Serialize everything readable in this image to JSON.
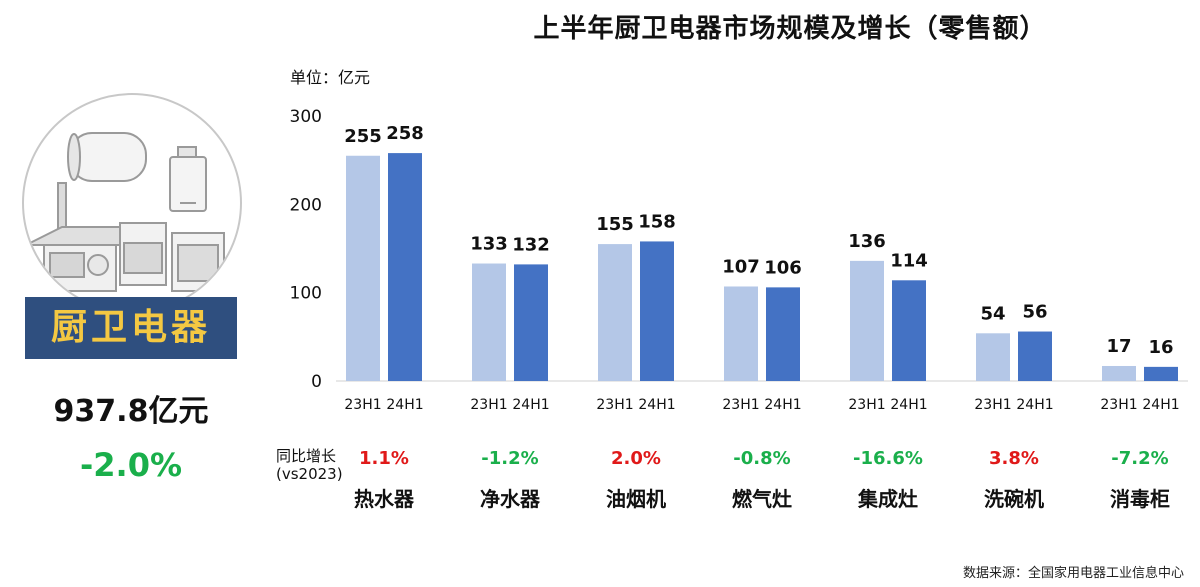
{
  "title": "上半年厨卫电器市场规模及增长（零售额）",
  "unit_label": "单位：亿元",
  "category": {
    "name": "厨卫电器",
    "total": "937.8亿元",
    "growth": "-2.0%"
  },
  "yoy_label": [
    "同比增长",
    "(vs2023)"
  ],
  "source": "数据来源：全国家用电器工业信息中心",
  "colors": {
    "s23": "#b4c7e7",
    "s24": "#4472c4",
    "positive": "#e01919",
    "negative": "#1aaf4b",
    "banner": "#2f4f7f",
    "banner_text": "#f4c842"
  },
  "growth_items": [
    {
      "text": "1.1%",
      "sign": "pos"
    },
    {
      "text": "-1.2%",
      "sign": "neg"
    },
    {
      "text": "2.0%",
      "sign": "pos"
    },
    {
      "text": "-0.8%",
      "sign": "neg"
    },
    {
      "text": "-16.6%",
      "sign": "neg"
    },
    {
      "text": "3.8%",
      "sign": "pos"
    },
    {
      "text": "-7.2%",
      "sign": "neg"
    }
  ],
  "chart_data": {
    "type": "bar",
    "title": "上半年厨卫电器市场规模及增长（零售额）",
    "ylabel": "单位：亿元",
    "xlabel": "",
    "ylim": [
      0,
      300
    ],
    "yticks": [
      0,
      100,
      200,
      300
    ],
    "grid": false,
    "categories": [
      "热水器",
      "净水器",
      "油烟机",
      "燃气灶",
      "集成灶",
      "洗碗机",
      "消毒柜"
    ],
    "period_labels": [
      "23H1",
      "24H1"
    ],
    "series": [
      {
        "name": "23H1",
        "values": [
          255,
          133,
          155,
          107,
          136,
          54,
          17
        ]
      },
      {
        "name": "24H1",
        "values": [
          258,
          132,
          158,
          106,
          114,
          56,
          16
        ]
      }
    ]
  }
}
